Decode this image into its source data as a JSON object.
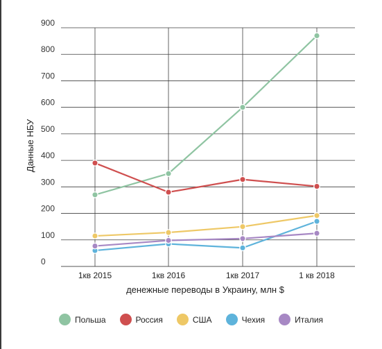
{
  "chart_data": {
    "type": "line",
    "title": "",
    "xlabel": "денежные переводы в Украину, млн $",
    "ylabel": "Данные НБУ",
    "categories": [
      "1кв 2015",
      "1кв 2016",
      "1кв 2017",
      "1 кв 2018"
    ],
    "y_ticks": [
      "0",
      "100",
      "200",
      "300",
      "400",
      "500",
      "600",
      "700",
      "800",
      "900"
    ],
    "ylim": [
      0,
      900
    ],
    "grid": true,
    "legend_position": "bottom",
    "series": [
      {
        "name": "Польша",
        "color": "#8fc4a2",
        "values": [
          270,
          350,
          600,
          870
        ]
      },
      {
        "name": "Россия",
        "color": "#cf4f4f",
        "values": [
          390,
          280,
          328,
          302
        ]
      },
      {
        "name": "США",
        "color": "#eec866",
        "values": [
          115,
          128,
          150,
          192
        ]
      },
      {
        "name": "Чехия",
        "color": "#5eb3db",
        "values": [
          60,
          85,
          70,
          170
        ]
      },
      {
        "name": "Италия",
        "color": "#a788c4",
        "values": [
          77,
          98,
          105,
          125
        ]
      }
    ]
  }
}
